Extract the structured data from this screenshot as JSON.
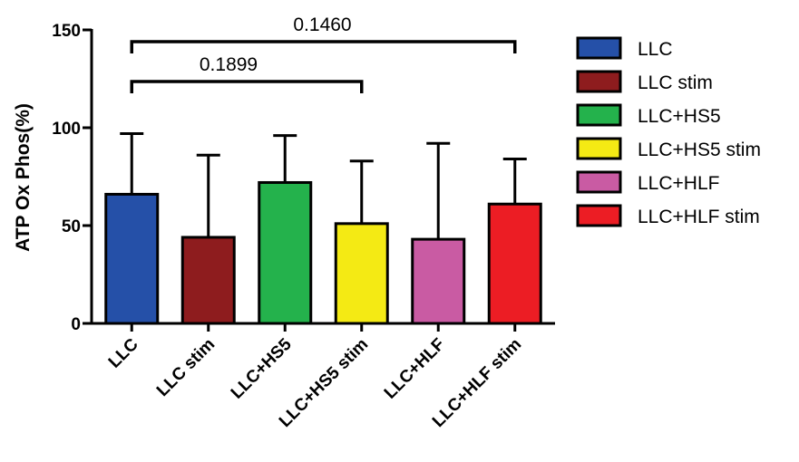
{
  "chart_data": {
    "type": "bar",
    "title": "",
    "xlabel": "",
    "ylabel": "ATP Ox Phos(%)",
    "ylim": [
      0,
      150
    ],
    "yticks": [
      0,
      50,
      100,
      150
    ],
    "grid": false,
    "legend_placement": "right",
    "categories": [
      "LLC",
      "LLC stim",
      "LLC+HS5",
      "LLC+HS5 stim",
      "LLC+HLF",
      "LLC+HLF stim"
    ],
    "values": [
      66,
      44,
      72,
      51,
      43,
      61
    ],
    "error_upper": [
      31,
      42,
      24,
      32,
      49,
      23
    ],
    "colors": [
      "#2550a8",
      "#8e1c1e",
      "#24b24c",
      "#f4ea14",
      "#c95ba3",
      "#ec1d24"
    ],
    "legend": [
      "LLC",
      "LLC stim",
      "LLC+HS5",
      "LLC+HS5 stim",
      "LLC+HLF",
      "LLC+HLF stim"
    ],
    "annotations": [
      {
        "from": "LLC",
        "to": "LLC+HS5 stim",
        "label": "0.1899"
      },
      {
        "from": "LLC",
        "to": "LLC+HLF stim",
        "label": "0.1460"
      }
    ]
  }
}
